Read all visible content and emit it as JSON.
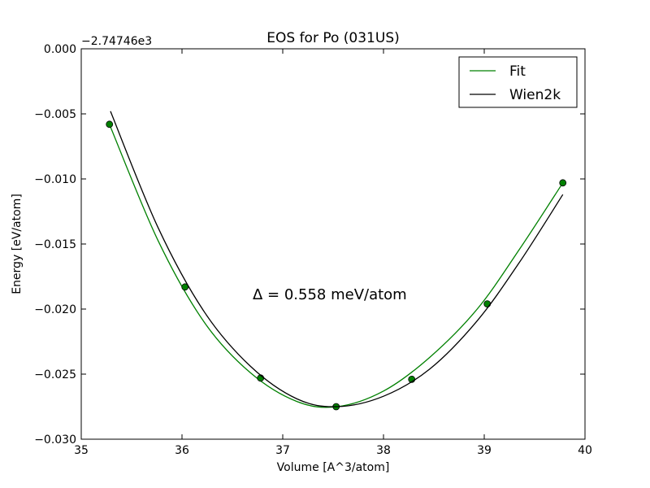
{
  "chart_data": {
    "type": "line",
    "title": "EOS for Po (031US)",
    "xlabel": "Volume [A^3/atom]",
    "ylabel": "Energy [eV/atom]",
    "y_offset_label": "−2.74746e3",
    "xlim": [
      35,
      40
    ],
    "ylim": [
      -0.03,
      0.0
    ],
    "x_ticks": [
      35,
      36,
      37,
      38,
      39,
      40
    ],
    "x_tick_labels": [
      "35",
      "36",
      "37",
      "38",
      "39",
      "40"
    ],
    "y_ticks": [
      0.0,
      -0.005,
      -0.01,
      -0.015,
      -0.02,
      -0.025,
      -0.03
    ],
    "y_tick_labels": [
      "0.000",
      "−0.005",
      "−0.010",
      "−0.015",
      "−0.020",
      "−0.025",
      "−0.030"
    ],
    "grid": false,
    "legend_position": "top-right",
    "annotation": "Δ = 0.558 meV/atom",
    "series": [
      {
        "name": "Fit",
        "color": "#008000",
        "kind": "curve",
        "x": [
          35.29,
          35.76,
          36.22,
          36.68,
          37.14,
          37.54,
          38.0,
          38.46,
          38.93,
          39.35,
          39.78
        ],
        "y": [
          -0.006,
          -0.0147,
          -0.021,
          -0.0249,
          -0.0271,
          -0.0275,
          -0.0263,
          -0.0237,
          -0.02,
          -0.0154,
          -0.0103
        ]
      },
      {
        "name": "",
        "color": "#008000",
        "kind": "points",
        "x": [
          35.28,
          36.03,
          36.78,
          37.53,
          38.28,
          39.03,
          39.78
        ],
        "y": [
          -0.0058,
          -0.0183,
          -0.0253,
          -0.0275,
          -0.0254,
          -0.0196,
          -0.0103
        ]
      },
      {
        "name": "Wien2k",
        "color": "#000000",
        "kind": "curve",
        "x": [
          35.29,
          35.76,
          36.22,
          36.68,
          37.14,
          37.54,
          38.0,
          38.46,
          38.93,
          39.35,
          39.78
        ],
        "y": [
          -0.0048,
          -0.0137,
          -0.0202,
          -0.0244,
          -0.0269,
          -0.0275,
          -0.0267,
          -0.0246,
          -0.0209,
          -0.0164,
          -0.0112
        ]
      }
    ]
  }
}
